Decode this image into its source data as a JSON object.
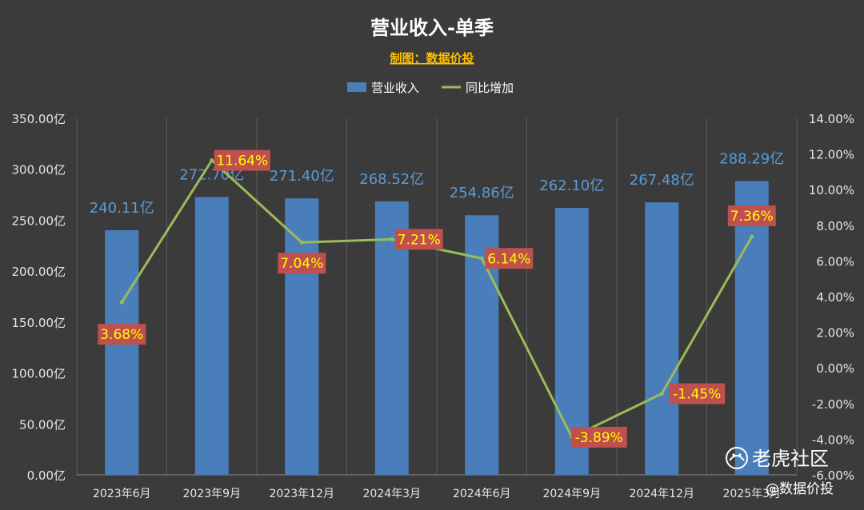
{
  "chart_data": {
    "type": "bar",
    "title": "营业收入-单季",
    "subtitle": "制图：数据价投",
    "categories": [
      "2023年6月",
      "2023年9月",
      "2023年12月",
      "2024年3月",
      "2024年6月",
      "2024年9月",
      "2024年12月",
      "2025年3月"
    ],
    "series": [
      {
        "name": "营业收入",
        "kind": "bar",
        "axis": "left",
        "color": "#4a7ebb",
        "values": [
          240.11,
          272.7,
          271.4,
          268.52,
          254.86,
          262.1,
          267.48,
          288.29
        ],
        "labels": [
          "240.11亿",
          "272.70亿",
          "271.40亿",
          "268.52亿",
          "254.86亿",
          "262.10亿",
          "267.48亿",
          "288.29亿"
        ]
      },
      {
        "name": "同比增加",
        "kind": "line",
        "axis": "right",
        "color": "#9bbb59",
        "values": [
          3.68,
          11.64,
          7.04,
          7.21,
          6.14,
          -3.89,
          -1.45,
          7.36
        ],
        "labels": [
          "3.68%",
          "11.64%",
          "7.04%",
          "7.21%",
          "6.14%",
          "-3.89%",
          "-1.45%",
          "7.36%"
        ]
      }
    ],
    "y_left": {
      "min": 0,
      "max": 350,
      "step": 50,
      "ticks": [
        "0.00亿",
        "50.00亿",
        "100.00亿",
        "150.00亿",
        "200.00亿",
        "250.00亿",
        "300.00亿",
        "350.00亿"
      ]
    },
    "y_right": {
      "min": -6,
      "max": 14,
      "step": 2,
      "ticks": [
        "-6.00%",
        "-4.00%",
        "-2.00%",
        "0.00%",
        "2.00%",
        "4.00%",
        "6.00%",
        "8.00%",
        "10.00%",
        "12.00%",
        "14.00%"
      ]
    },
    "grid": "vertical",
    "legend": "top"
  },
  "watermark": {
    "brand": "老虎社区",
    "handle": "@数据价投"
  },
  "colors": {
    "background": "#3b3b3b",
    "label_box": "#c0504d"
  }
}
